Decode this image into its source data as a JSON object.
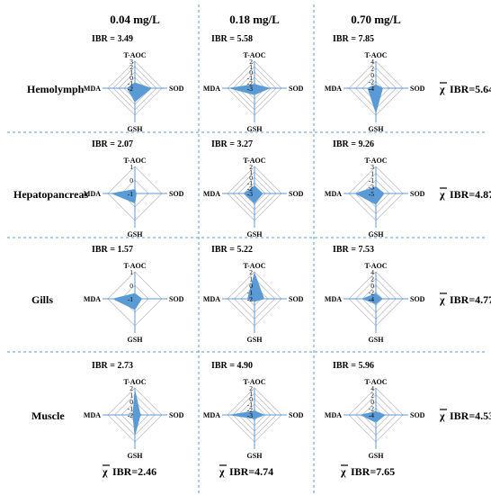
{
  "columns": [
    "0.04 mg/L",
    "0.18 mg/L",
    "0.70 mg/L"
  ],
  "rows": [
    "Hemolymph",
    "Hepatopancreas",
    "Gills",
    "Muscle"
  ],
  "axes": [
    "T-AOC",
    "SOD",
    "GSH",
    "MDA"
  ],
  "row_mean_labels": [
    "IBR=5.64",
    "IBR=4.87",
    "IBR=4.77",
    "IBR=4.53"
  ],
  "col_mean_labels": [
    "IBR=2.46",
    "IBR=4.74",
    "IBR=7.65"
  ],
  "mean_symbol": "χ",
  "colors": {
    "fill": "#5b9bd5",
    "axis": "#5b9bd5",
    "grid": "#b7b7b7",
    "divider": "#5b9bd5"
  },
  "chart_data": [
    {
      "type": "radar",
      "row": "Hemolymph",
      "concentration": "0.04 mg/L",
      "ibr_label": "IBR = 3.49",
      "ticks": [
        "3",
        "2",
        "1",
        "0",
        "-1",
        "-2"
      ],
      "axes": [
        "T-AOC",
        "SOD",
        "GSH",
        "MDA"
      ],
      "values": [
        -1.0,
        1.0,
        0.5,
        -0.6
      ],
      "rmin": -2,
      "rmax": 3
    },
    {
      "type": "radar",
      "row": "Hemolymph",
      "concentration": "0.18 mg/L",
      "ibr_label": "IBR = 5.58",
      "ticks": [
        "2",
        "1",
        "0",
        "-1",
        "-2",
        "-3"
      ],
      "axes": [
        "T-AOC",
        "SOD",
        "GSH",
        "MDA"
      ],
      "values": [
        -2.3,
        -0.2,
        -1.8,
        1.6
      ],
      "rmin": -3,
      "rmax": 2
    },
    {
      "type": "radar",
      "row": "Hemolymph",
      "concentration": "0.70 mg/L",
      "ibr_label": "IBR = 7.85",
      "ticks": [
        "4",
        "2",
        "0",
        "-2",
        "-4"
      ],
      "axes": [
        "T-AOC",
        "SOD",
        "GSH",
        "MDA"
      ],
      "values": [
        -3.0,
        -2.0,
        3.2,
        -1.6
      ],
      "rmin": -4,
      "rmax": 4
    },
    {
      "type": "radar",
      "row": "Hepatopancreas",
      "concentration": "0.04 mg/L",
      "ibr_label": "IBR = 2.07",
      "ticks": [
        "1",
        "0",
        "-1"
      ],
      "axes": [
        "T-AOC",
        "SOD",
        "GSH",
        "MDA"
      ],
      "values": [
        -0.7,
        -0.9,
        -0.3,
        0.7
      ],
      "rmin": -1,
      "rmax": 1
    },
    {
      "type": "radar",
      "row": "Hepatopancreas",
      "concentration": "0.18 mg/L",
      "ibr_label": "IBR = 3.27",
      "ticks": [
        "2",
        "1",
        "0",
        "-1",
        "-2",
        "-3"
      ],
      "axes": [
        "T-AOC",
        "SOD",
        "GSH",
        "MDA"
      ],
      "values": [
        -1.6,
        -1.5,
        -1.2,
        -1.1
      ],
      "rmin": -3,
      "rmax": 2
    },
    {
      "type": "radar",
      "row": "Hepatopancreas",
      "concentration": "0.70 mg/L",
      "ibr_label": "IBR = 9.26",
      "ticks": [
        "3",
        "1",
        "-1",
        "-3",
        "-5"
      ],
      "axes": [
        "T-AOC",
        "SOD",
        "GSH",
        "MDA"
      ],
      "values": [
        -3.0,
        -2.6,
        -1.8,
        1.0
      ],
      "rmin": -5,
      "rmax": 3
    },
    {
      "type": "radar",
      "row": "Gills",
      "concentration": "0.04 mg/L",
      "ibr_label": "IBR = 1.57",
      "ticks": [
        "1",
        "0",
        "-1"
      ],
      "axes": [
        "T-AOC",
        "SOD",
        "GSH",
        "MDA"
      ],
      "values": [
        -0.6,
        -0.5,
        -0.2,
        0.6
      ],
      "rmin": -1,
      "rmax": 1
    },
    {
      "type": "radar",
      "row": "Gills",
      "concentration": "0.18 mg/L",
      "ibr_label": "IBR = 5.22",
      "ticks": [
        "2",
        "1",
        "0",
        "-1",
        "-2"
      ],
      "axes": [
        "T-AOC",
        "SOD",
        "GSH",
        "MDA"
      ],
      "values": [
        1.8,
        -0.6,
        -1.6,
        -1.0
      ],
      "rmin": -2,
      "rmax": 2
    },
    {
      "type": "radar",
      "row": "Gills",
      "concentration": "0.70 mg/L",
      "ibr_label": "IBR = 7.53",
      "ticks": [
        "4",
        "2",
        "0",
        "-2",
        "-4"
      ],
      "axes": [
        "T-AOC",
        "SOD",
        "GSH",
        "MDA"
      ],
      "values": [
        -2.5,
        -2.2,
        -2.5,
        0.0
      ],
      "rmin": -4,
      "rmax": 4
    },
    {
      "type": "radar",
      "row": "Muscle",
      "concentration": "0.04 mg/L",
      "ibr_label": "IBR = 2.73",
      "ticks": [
        "2",
        "1",
        "0",
        "-1",
        "-2"
      ],
      "axes": [
        "T-AOC",
        "SOD",
        "GSH",
        "MDA"
      ],
      "values": [
        1.6,
        -1.2,
        1.0,
        -1.7
      ],
      "rmin": -2,
      "rmax": 2
    },
    {
      "type": "radar",
      "row": "Muscle",
      "concentration": "0.18 mg/L",
      "ibr_label": "IBR = 4.90",
      "ticks": [
        "2",
        "1",
        "0",
        "-1",
        "-2",
        "-3"
      ],
      "axes": [
        "T-AOC",
        "SOD",
        "GSH",
        "MDA"
      ],
      "values": [
        -2.3,
        -1.2,
        -2.3,
        1.5
      ],
      "rmin": -3,
      "rmax": 2
    },
    {
      "type": "radar",
      "row": "Muscle",
      "concentration": "0.70 mg/L",
      "ibr_label": "IBR = 5.96",
      "ticks": [
        "4",
        "2",
        "0",
        "-2",
        "-4"
      ],
      "axes": [
        "T-AOC",
        "SOD",
        "GSH",
        "MDA"
      ],
      "values": [
        -3.0,
        -1.3,
        -1.8,
        0.5
      ],
      "rmin": -4,
      "rmax": 4
    }
  ]
}
